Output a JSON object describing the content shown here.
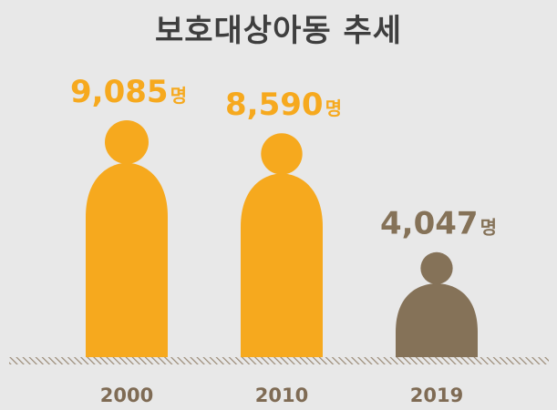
{
  "chart_data": {
    "type": "bar",
    "title": "보호대상아동 추세",
    "categories": [
      "2000",
      "2010",
      "2019"
    ],
    "values": [
      9085,
      8590,
      4047
    ],
    "value_labels": [
      "9,085",
      "8,590",
      "4,047"
    ],
    "unit": "명",
    "ylim": [
      0,
      9085
    ],
    "xlabel": "",
    "ylabel": "",
    "grid": false,
    "legend": "none"
  },
  "colors": {
    "background": "#e8e8e8",
    "highlight": "#f6a91e",
    "muted": "#857258",
    "title": "#3e3e3e",
    "ground": "#9a8a76",
    "axis_label": "#7f6b54"
  },
  "highlight_flags": [
    true,
    true,
    false
  ],
  "icon": "person-figure-icon"
}
